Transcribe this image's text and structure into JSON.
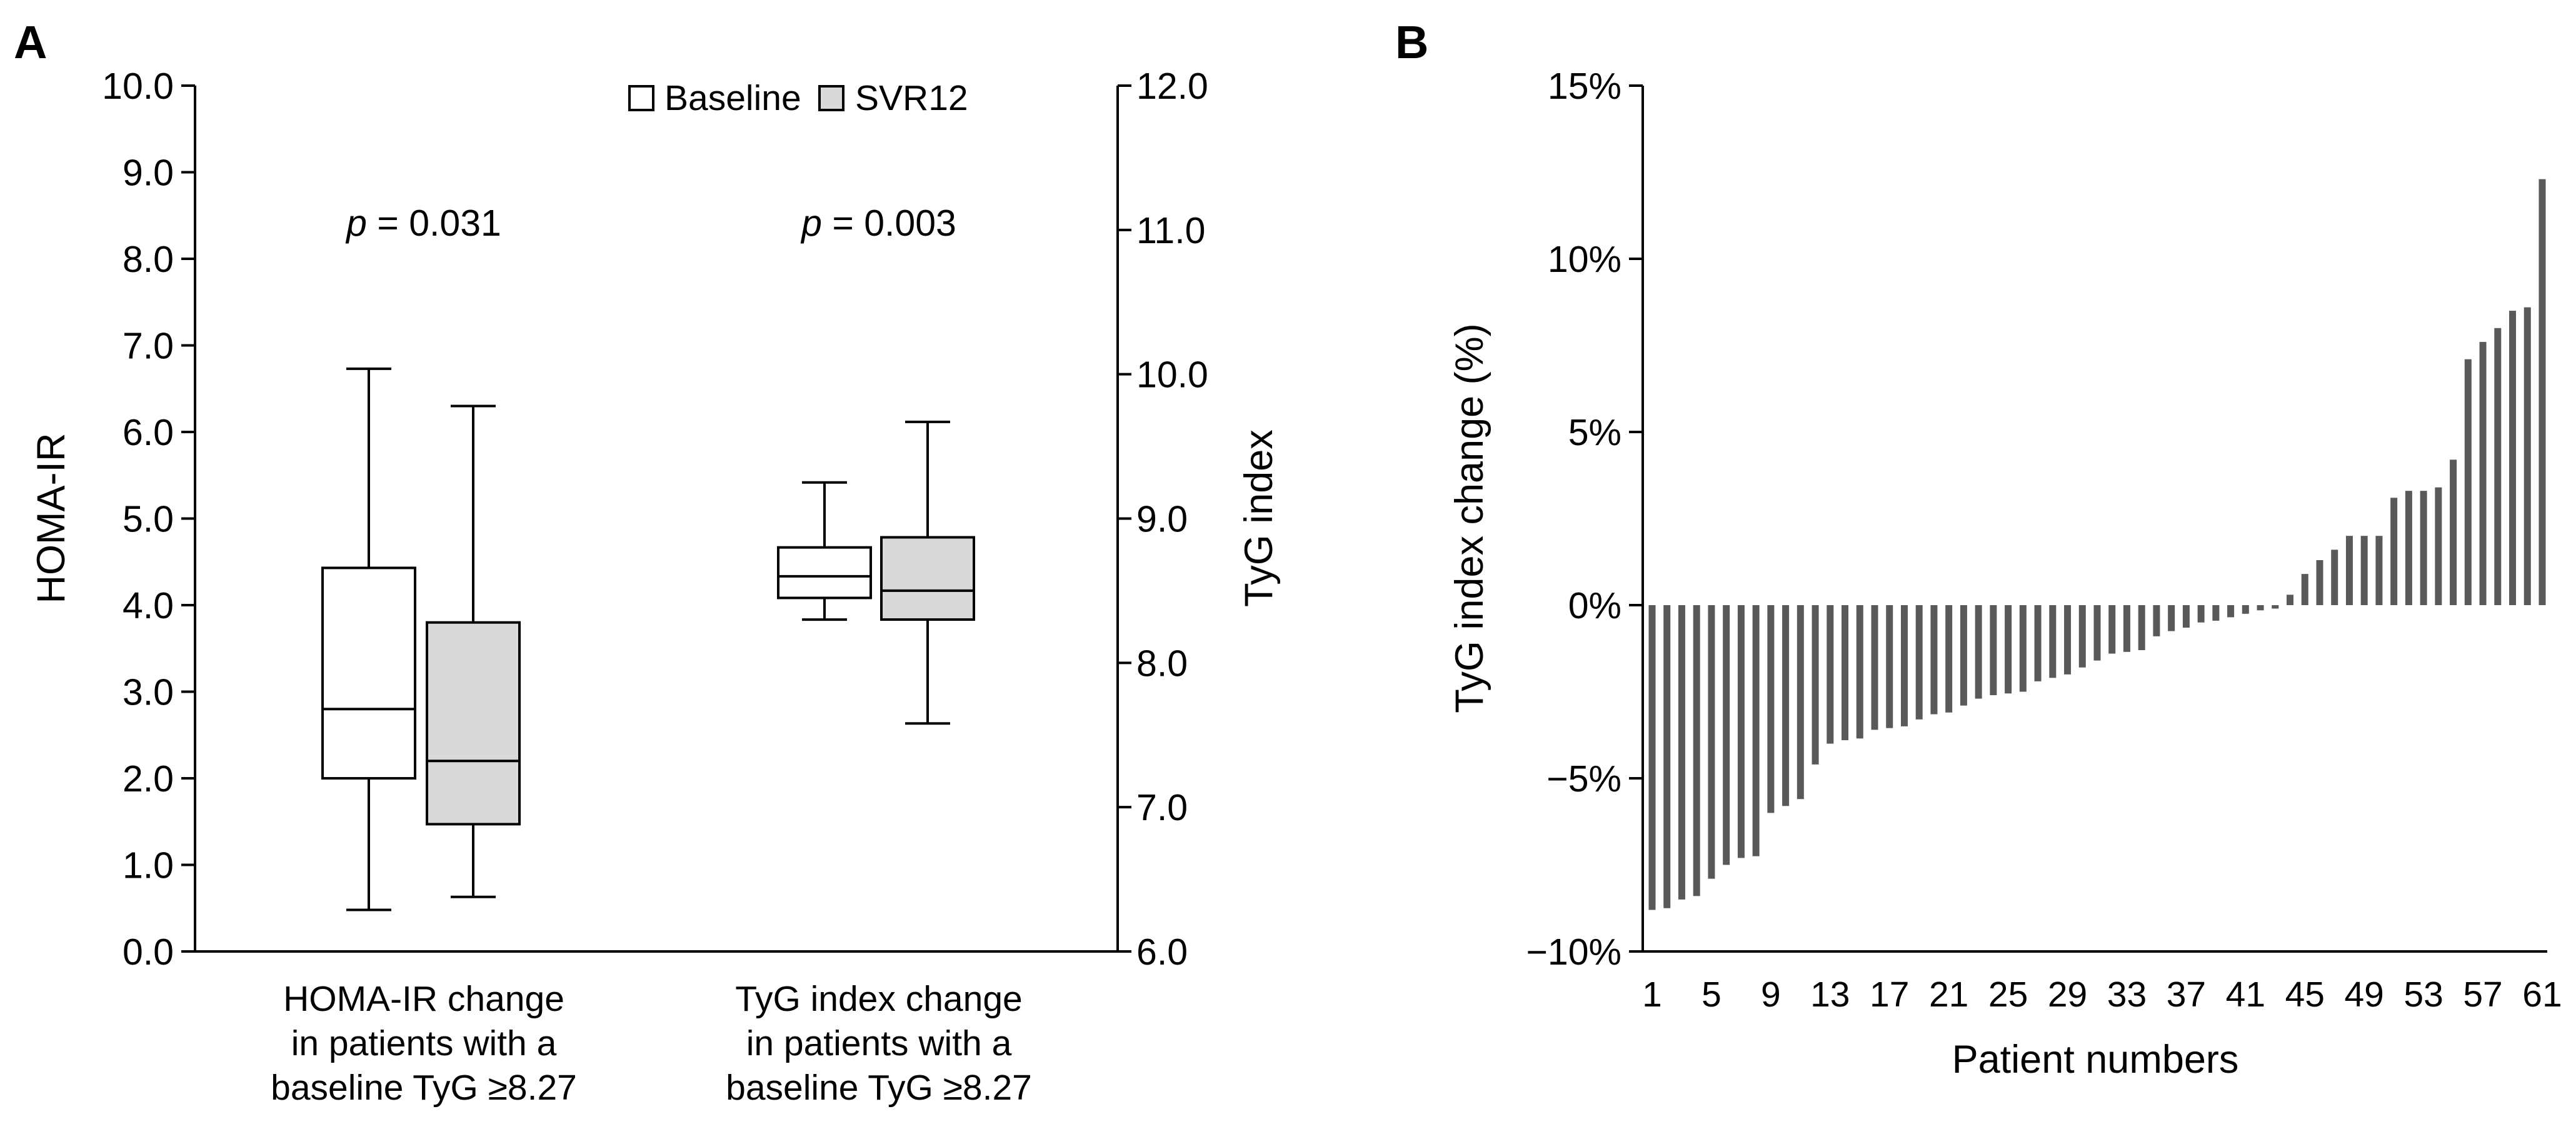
{
  "chart_data": [
    {
      "panel": "A",
      "type": "box",
      "ylabel": "HOMA-IR",
      "ylim": [
        0,
        10
      ],
      "y_ticks": [
        "0.0",
        "1.0",
        "2.0",
        "3.0",
        "4.0",
        "5.0",
        "6.0",
        "7.0",
        "8.0",
        "9.0",
        "10.0"
      ],
      "y2label": "TyG index",
      "y2lim": [
        6,
        12
      ],
      "y2_ticks": [
        "6.0",
        "7.0",
        "8.0",
        "9.0",
        "10.0",
        "11.0",
        "12.0"
      ],
      "legend": [
        "Baseline",
        "SVR12"
      ],
      "legend_position": "top-right",
      "colors": {
        "baseline": "#ffffff",
        "svr12": "#d9d9d9",
        "stroke": "#000000"
      },
      "groups": [
        {
          "category_lines": [
            "HOMA-IR change",
            "in patients with a",
            "baseline TyG ≥8.27"
          ],
          "p_label": "p",
          "p_value": " = 0.031",
          "axis": "left",
          "boxes": [
            {
              "series": "Baseline",
              "min": 0.48,
              "q1": 2.0,
              "median": 2.8,
              "q3": 4.43,
              "max": 6.73
            },
            {
              "series": "SVR12",
              "min": 0.63,
              "q1": 1.47,
              "median": 2.2,
              "q3": 3.8,
              "max": 6.3
            }
          ]
        },
        {
          "category_lines": [
            "TyG index change",
            "in patients with a",
            "baseline TyG ≥8.27"
          ],
          "p_label": "p",
          "p_value": " = 0.003",
          "axis": "right",
          "boxes": [
            {
              "series": "Baseline",
              "min": 8.3,
              "q1": 8.45,
              "median": 8.6,
              "q3": 8.8,
              "max": 9.25
            },
            {
              "series": "SVR12",
              "min": 7.58,
              "q1": 8.3,
              "median": 8.5,
              "q3": 8.87,
              "max": 9.67
            }
          ]
        }
      ]
    },
    {
      "panel": "B",
      "type": "bar",
      "ylabel": "TyG index change (%)",
      "xlabel": "Patient numbers",
      "ylim": [
        -10,
        15
      ],
      "y_ticks": [
        "−10%",
        "−5%",
        "0%",
        "5%",
        "10%",
        "15%"
      ],
      "x_ticks": [
        "1",
        "5",
        "9",
        "13",
        "17",
        "21",
        "25",
        "29",
        "33",
        "37",
        "41",
        "45",
        "49",
        "53",
        "57",
        "61"
      ],
      "bar_color": "#595959",
      "categories": [
        1,
        2,
        3,
        4,
        5,
        6,
        7,
        8,
        9,
        10,
        11,
        12,
        13,
        14,
        15,
        16,
        17,
        18,
        19,
        20,
        21,
        22,
        23,
        24,
        25,
        26,
        27,
        28,
        29,
        30,
        31,
        32,
        33,
        34,
        35,
        36,
        37,
        38,
        39,
        40,
        41,
        42,
        43,
        44,
        45,
        46,
        47,
        48,
        49,
        50,
        51,
        52,
        53,
        54,
        55,
        56,
        57,
        58,
        59,
        60,
        61
      ],
      "values": [
        -8.8,
        -8.75,
        -8.5,
        -8.4,
        -7.9,
        -7.5,
        -7.3,
        -7.25,
        -6.0,
        -5.8,
        -5.6,
        -4.6,
        -4.0,
        -3.9,
        -3.85,
        -3.6,
        -3.55,
        -3.5,
        -3.3,
        -3.15,
        -3.1,
        -2.9,
        -2.7,
        -2.6,
        -2.55,
        -2.5,
        -2.2,
        -2.1,
        -2.0,
        -1.8,
        -1.6,
        -1.4,
        -1.35,
        -1.3,
        -0.9,
        -0.75,
        -0.65,
        -0.5,
        -0.45,
        -0.35,
        -0.25,
        -0.15,
        -0.1,
        0.3,
        0.9,
        1.3,
        1.6,
        2.0,
        2.0,
        2.0,
        3.1,
        3.3,
        3.3,
        3.4,
        4.2,
        7.1,
        7.6,
        8.0,
        8.5,
        8.6,
        12.3
      ]
    }
  ]
}
